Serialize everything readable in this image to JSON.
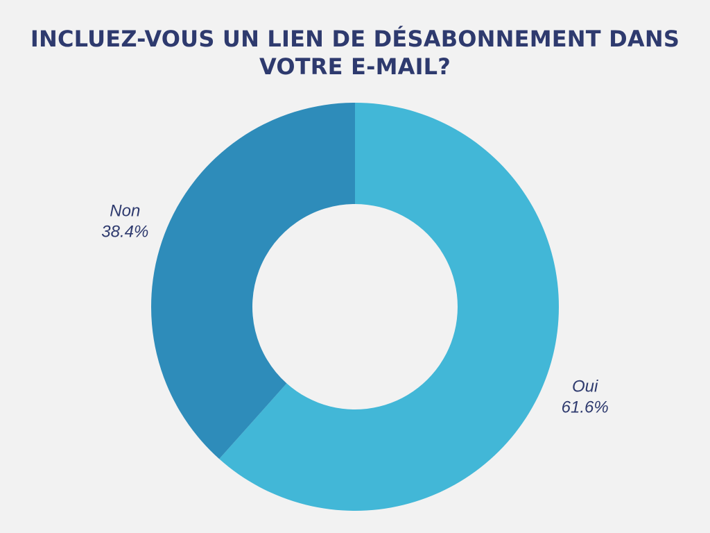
{
  "chart_data": {
    "type": "pie",
    "donut": true,
    "title_lines": [
      "INCLUEZ-VOUS UN LIEN DE DÉSABONNEMENT DANS",
      "VOTRE E-MAIL?"
    ],
    "slices": [
      {
        "label": "Oui",
        "value": 61.6,
        "display": "61.6%",
        "color": "#42b7d7"
      },
      {
        "label": "Non",
        "value": 38.4,
        "display": "38.4%",
        "color": "#2e8cba"
      }
    ],
    "start": "top",
    "direction": "clockwise",
    "legend": "none",
    "label_position": "outside"
  },
  "colors": {
    "background": "#f2f2f2",
    "title": "#2e3a6e",
    "labels": "#2e3a6e"
  }
}
